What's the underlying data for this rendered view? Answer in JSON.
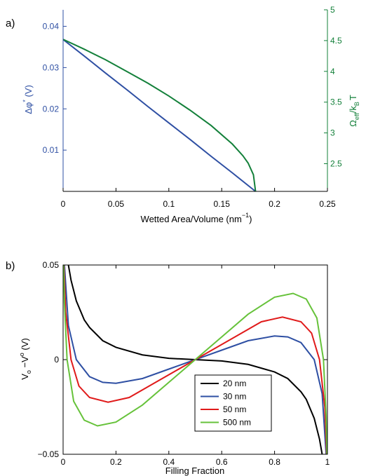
{
  "chart_data": [
    {
      "panel_label": "a)",
      "type": "line",
      "xlabel": "Wetted Area/Volume (nm",
      "xlabel_sup": "−1",
      "xlabel_close": ")",
      "xlim": [
        0,
        0.25
      ],
      "x_ticks": [
        "0",
        "0.05",
        "0.1",
        "0.15",
        "0.2",
        "0.25"
      ],
      "x_tick_values": [
        0,
        0.05,
        0.1,
        0.15,
        0.2,
        0.25
      ],
      "y_left": {
        "label": "Δφ",
        "label_sup": "*",
        "label_tail": " (V)",
        "color": "#2e4fa3",
        "lim": [
          0,
          0.044
        ],
        "ticks": [
          "0.01",
          "0.02",
          "0.03",
          "0.04"
        ],
        "tick_values": [
          0.01,
          0.02,
          0.03,
          0.04
        ]
      },
      "y_right": {
        "label": "Ω",
        "label_sub1": "eff",
        "label_mid": "/k",
        "label_sub2": "B",
        "label_tail": "T",
        "color": "#13803a",
        "lim": [
          2.05,
          5.0
        ],
        "ticks": [
          "2.5",
          "3",
          "3.5",
          "4",
          "4.5",
          "5"
        ],
        "tick_values": [
          2.5,
          3,
          3.5,
          4,
          4.5,
          5
        ]
      },
      "series": [
        {
          "axis": "left",
          "color": "#2e4fa3",
          "x": [
            0,
            0.02,
            0.04,
            0.06,
            0.08,
            0.1,
            0.12,
            0.14,
            0.16,
            0.18,
            0.182
          ],
          "y": [
            0.0368,
            0.0328,
            0.0287,
            0.0247,
            0.0206,
            0.0166,
            0.0126,
            0.0085,
            0.0045,
            0.0004,
            0.0
          ]
        },
        {
          "axis": "right",
          "color": "#13803a",
          "x": [
            0,
            0.02,
            0.04,
            0.06,
            0.08,
            0.1,
            0.12,
            0.14,
            0.16,
            0.17,
            0.175,
            0.18,
            0.182
          ],
          "y": [
            4.52,
            4.36,
            4.19,
            4.0,
            3.81,
            3.6,
            3.37,
            3.12,
            2.82,
            2.63,
            2.51,
            2.32,
            2.05
          ]
        }
      ]
    },
    {
      "panel_label": "b)",
      "type": "line",
      "xlabel": "Filling Fraction",
      "xlim": [
        0,
        1
      ],
      "x_ticks": [
        "0",
        "0.2",
        "0.4",
        "0.6",
        "0.8",
        "1"
      ],
      "x_tick_values": [
        0,
        0.2,
        0.4,
        0.6,
        0.8,
        1
      ],
      "ylabel": "V",
      "ylabel_sub": "o",
      "ylabel_mid": " −V",
      "ylabel_sup": "o",
      "ylabel_tail": " (V)",
      "ylim": [
        -0.05,
        0.05
      ],
      "y_ticks": [
        "−0.05",
        "0",
        "0.05"
      ],
      "y_tick_values": [
        -0.05,
        0,
        0.05
      ],
      "legend_position": "lower-right",
      "series": [
        {
          "name": "20 nm",
          "color": "#000000",
          "x": [
            0.02,
            0.03,
            0.05,
            0.08,
            0.1,
            0.15,
            0.2,
            0.3,
            0.4,
            0.5,
            0.6,
            0.7,
            0.8,
            0.85,
            0.9,
            0.92,
            0.95,
            0.97,
            0.98
          ],
          "y": [
            0.05,
            0.042,
            0.031,
            0.021,
            0.017,
            0.01,
            0.0065,
            0.0025,
            0.0007,
            0.0,
            -0.0007,
            -0.0025,
            -0.0065,
            -0.01,
            -0.017,
            -0.021,
            -0.031,
            -0.042,
            -0.05
          ]
        },
        {
          "name": "30 nm",
          "color": "#2e4fa3",
          "x": [
            0.005,
            0.02,
            0.05,
            0.1,
            0.15,
            0.2,
            0.3,
            0.4,
            0.5,
            0.6,
            0.7,
            0.8,
            0.85,
            0.9,
            0.95,
            0.98,
            0.995
          ],
          "y": [
            0.05,
            0.018,
            0.0,
            -0.009,
            -0.012,
            -0.0125,
            -0.01,
            -0.005,
            0.0,
            0.005,
            0.01,
            0.0125,
            0.012,
            0.009,
            0.0,
            -0.018,
            -0.05
          ]
        },
        {
          "name": "50 nm",
          "color": "#e01a1a",
          "x": [
            0.003,
            0.01,
            0.03,
            0.06,
            0.1,
            0.17,
            0.25,
            0.35,
            0.5,
            0.65,
            0.75,
            0.83,
            0.9,
            0.94,
            0.97,
            0.99,
            0.997
          ],
          "y": [
            0.05,
            0.025,
            0.0,
            -0.014,
            -0.02,
            -0.0225,
            -0.02,
            -0.012,
            0.0,
            0.012,
            0.02,
            0.0225,
            0.02,
            0.014,
            0.0,
            -0.025,
            -0.05
          ]
        },
        {
          "name": "500 nm",
          "color": "#66c23a",
          "x": [
            0.002,
            0.005,
            0.015,
            0.04,
            0.08,
            0.13,
            0.2,
            0.3,
            0.4,
            0.5,
            0.6,
            0.7,
            0.8,
            0.87,
            0.92,
            0.96,
            0.985,
            0.995,
            0.998
          ],
          "y": [
            0.05,
            0.03,
            0.0,
            -0.022,
            -0.032,
            -0.035,
            -0.033,
            -0.024,
            -0.012,
            0.0,
            0.012,
            0.024,
            0.033,
            0.035,
            0.032,
            0.022,
            0.0,
            -0.03,
            -0.05
          ]
        }
      ]
    }
  ]
}
